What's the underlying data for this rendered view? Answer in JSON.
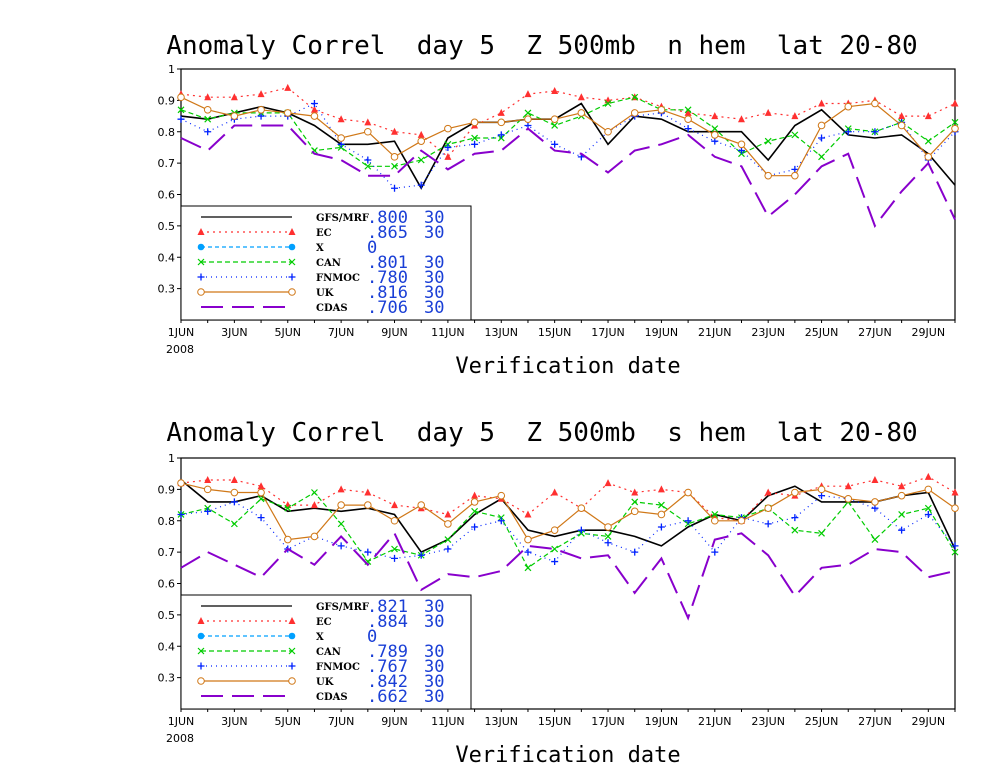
{
  "series_styles": [
    {
      "key": "gfs",
      "color": "#000000",
      "dash": "",
      "marker": "none"
    },
    {
      "key": "ec",
      "color": "#ff3030",
      "dash": "2,4",
      "marker": "triangle"
    },
    {
      "key": "x",
      "color": "#00a0ff",
      "dash": "4,3",
      "marker": "dot"
    },
    {
      "key": "can",
      "color": "#00cc00",
      "dash": "5,3",
      "marker": "x"
    },
    {
      "key": "fnmoc",
      "color": "#0022ff",
      "dash": "1,4",
      "marker": "plus"
    },
    {
      "key": "uk",
      "color": "#d07818",
      "dash": "",
      "marker": "circle"
    },
    {
      "key": "cdas",
      "color": "#8800cc",
      "dash": "22,9",
      "marker": "none"
    }
  ],
  "chart_data": [
    {
      "type": "line",
      "title": "Anomaly Correl  day 5  Z 500mb  n hem  lat 20-80",
      "xlabel": "Verification date",
      "ylim": [
        0.2,
        1.0
      ],
      "y_ticks": [
        "0.3",
        "0.4",
        "0.5",
        "0.6",
        "0.7",
        "0.8",
        "0.9",
        "1"
      ],
      "y_tick_values": [
        0.3,
        0.4,
        0.5,
        0.6,
        0.7,
        0.8,
        0.9,
        1.0
      ],
      "x_ticks": [
        "1JUN",
        "3JUN",
        "5JUN",
        "7JUN",
        "9JUN",
        "11JUN",
        "13JUN",
        "15JUN",
        "17JUN",
        "19JUN",
        "21JUN",
        "23JUN",
        "25JUN",
        "27JUN",
        "29JUN"
      ],
      "year_label": "2008",
      "x": [
        1,
        2,
        3,
        4,
        5,
        6,
        7,
        8,
        9,
        10,
        11,
        12,
        13,
        14,
        15,
        16,
        17,
        18,
        19,
        20,
        21,
        22,
        23,
        24,
        25,
        26,
        27,
        28,
        29,
        30
      ],
      "legend": [
        {
          "name": "GFS/MRF",
          "score": ".800",
          "count": "30"
        },
        {
          "name": "EC",
          "score": ".865",
          "count": "30"
        },
        {
          "name": "X",
          "score": "0",
          "count": ""
        },
        {
          "name": "CAN",
          "score": ".801",
          "count": "30"
        },
        {
          "name": "FNMOC",
          "score": ".780",
          "count": "30"
        },
        {
          "name": "UK",
          "score": ".816",
          "count": "30"
        },
        {
          "name": "CDAS",
          "score": ".706",
          "count": "30"
        }
      ],
      "series": [
        {
          "name": "GFS/MRF",
          "values": [
            0.85,
            0.84,
            0.86,
            0.88,
            0.86,
            0.82,
            0.76,
            0.76,
            0.77,
            0.62,
            0.78,
            0.83,
            0.83,
            0.84,
            0.84,
            0.89,
            0.76,
            0.85,
            0.84,
            0.8,
            0.8,
            0.8,
            0.71,
            0.82,
            0.87,
            0.79,
            0.78,
            0.79,
            0.73,
            0.63
          ]
        },
        {
          "name": "EC",
          "values": [
            0.92,
            0.91,
            0.91,
            0.92,
            0.94,
            0.87,
            0.84,
            0.83,
            0.8,
            0.79,
            0.72,
            0.82,
            0.86,
            0.92,
            0.93,
            0.91,
            0.9,
            0.91,
            0.88,
            0.86,
            0.85,
            0.84,
            0.86,
            0.85,
            0.89,
            0.89,
            0.9,
            0.85,
            0.85,
            0.89
          ]
        },
        {
          "name": "CAN",
          "values": [
            0.87,
            0.84,
            0.86,
            0.86,
            0.86,
            0.74,
            0.75,
            0.69,
            0.69,
            0.71,
            0.76,
            0.78,
            0.78,
            0.86,
            0.82,
            0.85,
            0.89,
            0.91,
            0.87,
            0.87,
            0.81,
            0.73,
            0.77,
            0.79,
            0.72,
            0.81,
            0.8,
            0.83,
            0.77,
            0.83
          ]
        },
        {
          "name": "FNMOC",
          "values": [
            0.84,
            0.8,
            0.84,
            0.85,
            0.85,
            0.89,
            0.76,
            0.71,
            0.62,
            0.63,
            0.75,
            0.76,
            0.79,
            0.82,
            0.76,
            0.72,
            0.8,
            0.85,
            0.86,
            0.81,
            0.77,
            0.74,
            0.66,
            0.68,
            0.78,
            0.8,
            0.8,
            0.83,
            0.71,
            0.8
          ]
        },
        {
          "name": "UK",
          "values": [
            0.91,
            0.87,
            0.85,
            0.87,
            0.86,
            0.85,
            0.78,
            0.8,
            0.72,
            0.77,
            0.81,
            0.83,
            0.83,
            0.84,
            0.84,
            0.86,
            0.8,
            0.86,
            0.87,
            0.84,
            0.79,
            0.76,
            0.66,
            0.66,
            0.82,
            0.88,
            0.89,
            0.82,
            0.72,
            0.81
          ]
        },
        {
          "name": "CDAS",
          "values": [
            0.78,
            0.74,
            0.82,
            0.82,
            0.82,
            0.73,
            0.71,
            0.66,
            0.66,
            0.74,
            0.68,
            0.73,
            0.74,
            0.81,
            0.74,
            0.73,
            0.67,
            0.74,
            0.76,
            0.79,
            0.72,
            0.69,
            0.53,
            0.6,
            0.69,
            0.73,
            0.5,
            0.61,
            0.7,
            0.52
          ]
        }
      ]
    },
    {
      "type": "line",
      "title": "Anomaly Correl  day 5  Z 500mb  s hem  lat 20-80",
      "xlabel": "Verification date",
      "ylim": [
        0.2,
        1.0
      ],
      "y_ticks": [
        "0.3",
        "0.4",
        "0.5",
        "0.6",
        "0.7",
        "0.8",
        "0.9",
        "1"
      ],
      "y_tick_values": [
        0.3,
        0.4,
        0.5,
        0.6,
        0.7,
        0.8,
        0.9,
        1.0
      ],
      "x_ticks": [
        "1JUN",
        "3JUN",
        "5JUN",
        "7JUN",
        "9JUN",
        "11JUN",
        "13JUN",
        "15JUN",
        "17JUN",
        "19JUN",
        "21JUN",
        "23JUN",
        "25JUN",
        "27JUN",
        "29JUN"
      ],
      "year_label": "2008",
      "x": [
        1,
        2,
        3,
        4,
        5,
        6,
        7,
        8,
        9,
        10,
        11,
        12,
        13,
        14,
        15,
        16,
        17,
        18,
        19,
        20,
        21,
        22,
        23,
        24,
        25,
        26,
        27,
        28,
        29,
        30
      ],
      "legend": [
        {
          "name": "GFS/MRF",
          "score": ".821",
          "count": "30"
        },
        {
          "name": "EC",
          "score": ".884",
          "count": "30"
        },
        {
          "name": "X",
          "score": "0",
          "count": ""
        },
        {
          "name": "CAN",
          "score": ".789",
          "count": "30"
        },
        {
          "name": "FNMOC",
          "score": ".767",
          "count": "30"
        },
        {
          "name": "UK",
          "score": ".842",
          "count": "30"
        },
        {
          "name": "CDAS",
          "score": ".662",
          "count": "30"
        }
      ],
      "series": [
        {
          "name": "GFS/MRF",
          "values": [
            0.93,
            0.86,
            0.86,
            0.88,
            0.83,
            0.84,
            0.83,
            0.84,
            0.82,
            0.7,
            0.74,
            0.82,
            0.87,
            0.77,
            0.75,
            0.77,
            0.77,
            0.75,
            0.72,
            0.78,
            0.82,
            0.8,
            0.88,
            0.91,
            0.86,
            0.86,
            0.86,
            0.88,
            0.89,
            0.71
          ]
        },
        {
          "name": "EC",
          "values": [
            0.92,
            0.93,
            0.93,
            0.91,
            0.85,
            0.85,
            0.9,
            0.89,
            0.85,
            0.84,
            0.82,
            0.88,
            0.87,
            0.82,
            0.89,
            0.84,
            0.92,
            0.89,
            0.9,
            0.89,
            0.81,
            0.8,
            0.89,
            0.88,
            0.91,
            0.91,
            0.93,
            0.91,
            0.94,
            0.89
          ]
        },
        {
          "name": "CAN",
          "values": [
            0.82,
            0.84,
            0.79,
            0.87,
            0.84,
            0.89,
            0.79,
            0.67,
            0.71,
            0.69,
            0.74,
            0.83,
            0.81,
            0.65,
            0.71,
            0.76,
            0.75,
            0.86,
            0.85,
            0.79,
            0.82,
            0.81,
            0.84,
            0.77,
            0.76,
            0.86,
            0.74,
            0.82,
            0.84,
            0.7
          ]
        },
        {
          "name": "FNMOC",
          "values": [
            0.82,
            0.83,
            0.86,
            0.81,
            0.71,
            0.75,
            0.72,
            0.7,
            0.68,
            0.69,
            0.71,
            0.78,
            0.8,
            0.7,
            0.67,
            0.77,
            0.73,
            0.7,
            0.78,
            0.8,
            0.7,
            0.81,
            0.79,
            0.81,
            0.88,
            0.87,
            0.84,
            0.77,
            0.82,
            0.72
          ]
        },
        {
          "name": "UK",
          "values": [
            0.92,
            0.9,
            0.89,
            0.89,
            0.74,
            0.75,
            0.85,
            0.85,
            0.8,
            0.85,
            0.79,
            0.86,
            0.88,
            0.74,
            0.77,
            0.84,
            0.78,
            0.83,
            0.82,
            0.89,
            0.8,
            0.8,
            0.84,
            0.89,
            0.9,
            0.87,
            0.86,
            0.88,
            0.9,
            0.84
          ]
        },
        {
          "name": "CDAS",
          "values": [
            0.65,
            0.7,
            0.66,
            0.62,
            0.71,
            0.66,
            0.75,
            0.66,
            0.76,
            0.58,
            0.63,
            0.62,
            0.64,
            0.72,
            0.71,
            0.68,
            0.69,
            0.57,
            0.68,
            0.49,
            0.74,
            0.76,
            0.69,
            0.56,
            0.65,
            0.66,
            0.71,
            0.7,
            0.62,
            0.64
          ]
        }
      ]
    }
  ]
}
